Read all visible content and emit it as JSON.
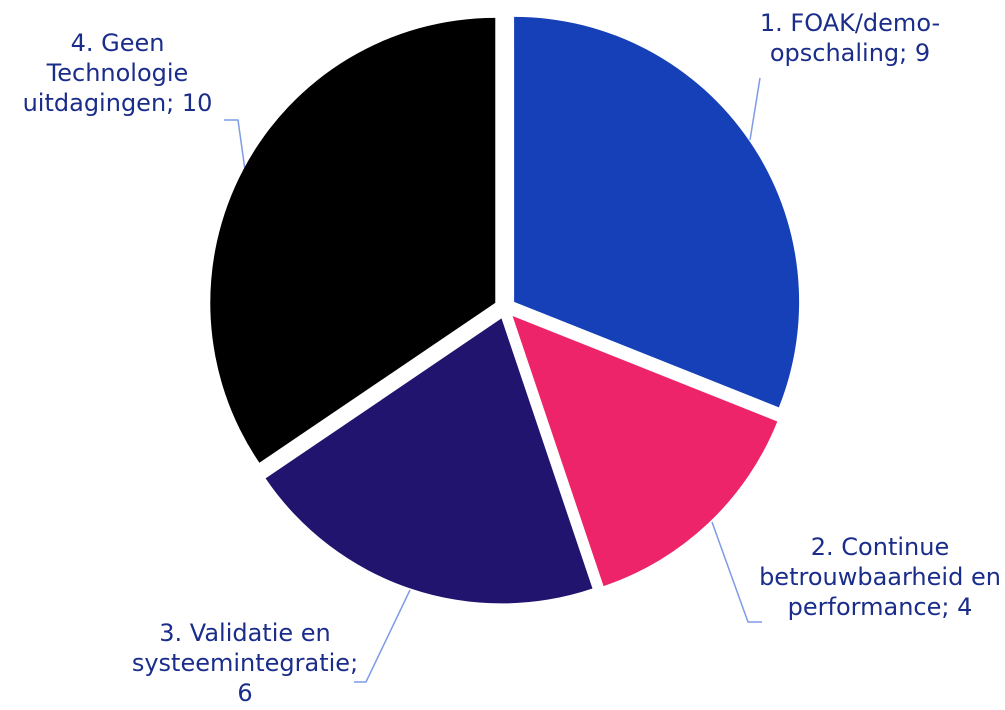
{
  "chart_data": {
    "type": "pie",
    "values": [
      9,
      4,
      6,
      10
    ],
    "value_labels": [
      "1. FOAK/demo-opschaling; 9",
      "2. Continue betrouwbaarheid en performance; 4",
      "3. Validatie en systeemintegratie; 6",
      "4. Geen Technologie uitdagingen; 10"
    ],
    "colors": [
      "#1540b8",
      "#ee246a",
      "#21146e",
      "#000000"
    ]
  }
}
